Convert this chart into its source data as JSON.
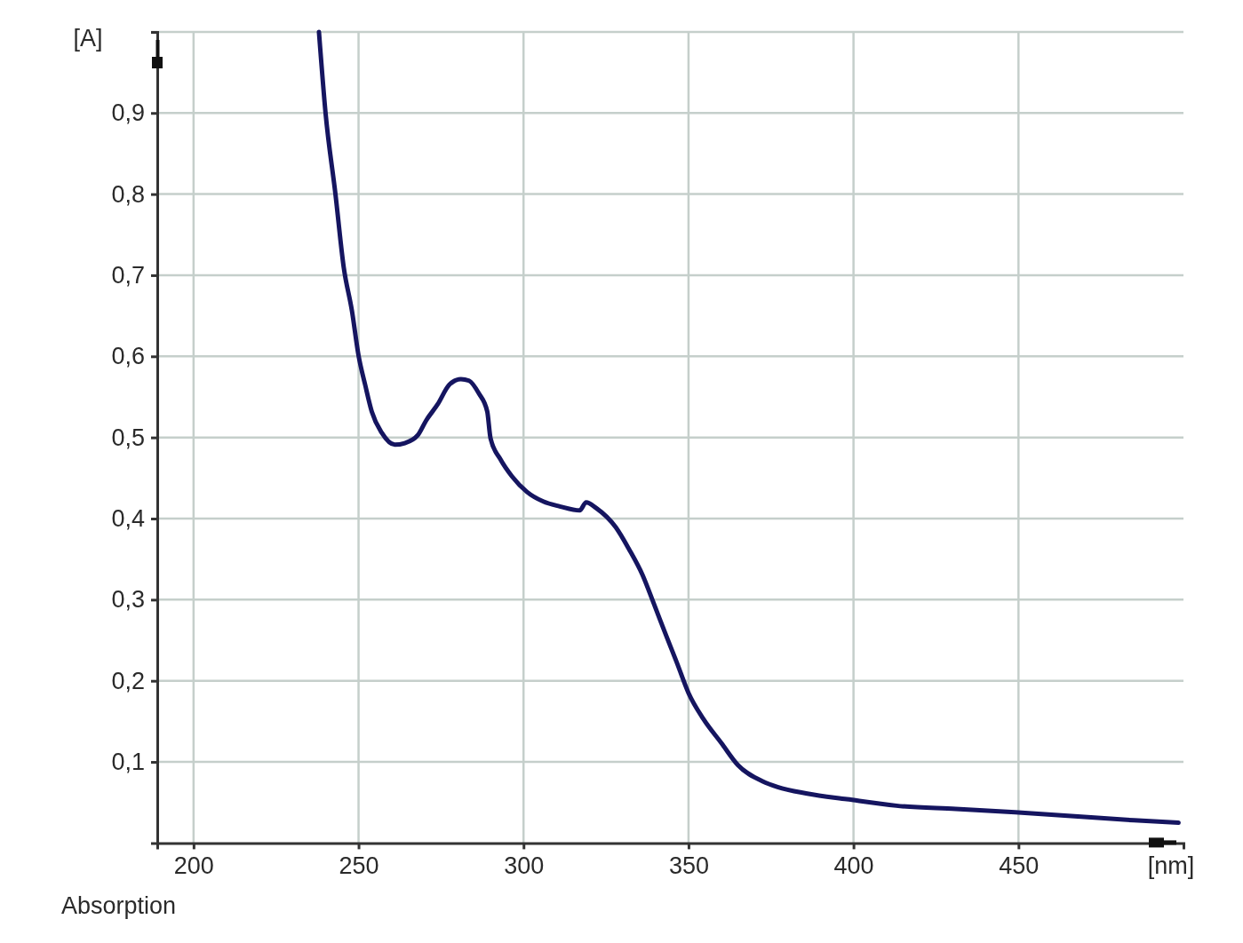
{
  "chart_data": {
    "type": "line",
    "ylabel": "[A]",
    "xlabel": "[nm]",
    "annotations": [
      "Absorption"
    ],
    "x": [
      238,
      240,
      243,
      245.5,
      248,
      250,
      252,
      254,
      257,
      261,
      264,
      268,
      270.5,
      274,
      277.5,
      281,
      283.5,
      286.5,
      289,
      290,
      293,
      296.5,
      301,
      306,
      311,
      317,
      319,
      322,
      328,
      332,
      336,
      339.5,
      343,
      346.5,
      350,
      354.5,
      360,
      365,
      372.5,
      377,
      386,
      398,
      413,
      431,
      449,
      467,
      485,
      498.5
    ],
    "series": [
      {
        "color": "#151560",
        "values": [
          1.0,
          0.9,
          0.8,
          0.71,
          0.656,
          0.601,
          0.565,
          0.532,
          0.506,
          0.491,
          0.493,
          0.503,
          0.521,
          0.541,
          0.565,
          0.572,
          0.57,
          0.554,
          0.532,
          0.499,
          0.473,
          0.452,
          0.433,
          0.421,
          0.415,
          0.41,
          0.42,
          0.413,
          0.389,
          0.362,
          0.331,
          0.295,
          0.258,
          0.222,
          0.185,
          0.153,
          0.123,
          0.096,
          0.076,
          0.069,
          0.061,
          0.054,
          0.046,
          0.042,
          0.038,
          0.033,
          0.028,
          0.025
        ]
      }
    ],
    "xlim": [
      189,
      500
    ],
    "ylim": [
      0,
      1
    ],
    "xticks": [
      200,
      250,
      300,
      350,
      400,
      450
    ],
    "yticks": [
      {
        "value": 0.1,
        "label": "0,1"
      },
      {
        "value": 0.2,
        "label": "0,2"
      },
      {
        "value": 0.3,
        "label": "0,3"
      },
      {
        "value": 0.4,
        "label": "0,4"
      },
      {
        "value": 0.5,
        "label": "0,5"
      },
      {
        "value": 0.6,
        "label": "0,6"
      },
      {
        "value": 0.7,
        "label": "0,7"
      },
      {
        "value": 0.8,
        "label": "0,8"
      },
      {
        "value": 0.9,
        "label": "0,9"
      },
      {
        "value": 1,
        "label": null
      }
    ],
    "grid": true,
    "line_style": "solid"
  }
}
